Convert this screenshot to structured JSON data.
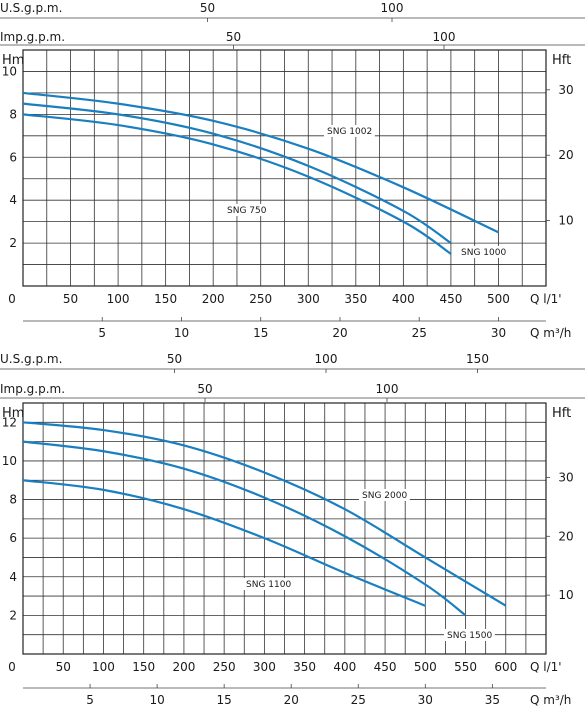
{
  "colors": {
    "curve": "#1a7fc1",
    "grid": "#333333"
  },
  "chart_data": [
    {
      "type": "line",
      "x_unit_label": "Q  l/1'",
      "x2_unit_label": "Q  m³/h",
      "y_left_label": "Hm",
      "y_right_label": "Hft",
      "top_scale1_label": "U.S.g.p.m.",
      "top_scale2_label": "Imp.g.p.m.",
      "xlim": [
        0,
        550
      ],
      "ylim": [
        0,
        11
      ],
      "x_ticks": [
        0,
        50,
        100,
        150,
        200,
        250,
        300,
        350,
        400,
        450,
        500
      ],
      "y_ticks": [
        2,
        4,
        6,
        8,
        10
      ],
      "y_right_ticks": [
        10,
        20,
        30
      ],
      "m3h_ticks": [
        5,
        10,
        15,
        20,
        25,
        30
      ],
      "usgpm_ticks": [
        50,
        100
      ],
      "impgpm_ticks": [
        50,
        100
      ],
      "series": [
        {
          "name": "SNG 1002",
          "x": [
            0,
            100,
            200,
            300,
            400,
            500
          ],
          "y": [
            9.0,
            8.5,
            7.7,
            6.4,
            4.6,
            2.5
          ]
        },
        {
          "name": "SNG 1000",
          "x": [
            0,
            100,
            200,
            300,
            400,
            450
          ],
          "y": [
            8.5,
            8.0,
            7.1,
            5.6,
            3.5,
            2.0
          ]
        },
        {
          "name": "SNG 750",
          "x": [
            0,
            100,
            200,
            300,
            400,
            450
          ],
          "y": [
            8.0,
            7.5,
            6.6,
            5.1,
            3.0,
            1.5
          ]
        }
      ]
    },
    {
      "type": "line",
      "x_unit_label": "Q  l/1'",
      "x2_unit_label": "Q  m³/h",
      "y_left_label": "Hm",
      "y_right_label": "Hft",
      "top_scale1_label": "U.S.g.p.m.",
      "top_scale2_label": "Imp.g.p.m.",
      "xlim": [
        0,
        650
      ],
      "ylim": [
        0,
        13
      ],
      "x_ticks": [
        0,
        50,
        100,
        150,
        200,
        250,
        300,
        350,
        400,
        450,
        500,
        550,
        600
      ],
      "y_ticks": [
        2,
        4,
        6,
        8,
        10,
        12
      ],
      "y_right_ticks": [
        10,
        20,
        30
      ],
      "m3h_ticks": [
        5,
        10,
        15,
        20,
        25,
        30,
        35
      ],
      "usgpm_ticks": [
        50,
        100,
        150
      ],
      "impgpm_ticks": [
        50,
        100
      ],
      "series": [
        {
          "name": "SNG 2000",
          "x": [
            0,
            100,
            200,
            300,
            400,
            500,
            600
          ],
          "y": [
            12.0,
            11.6,
            10.8,
            9.4,
            7.5,
            5.0,
            2.5
          ]
        },
        {
          "name": "SNG 1500",
          "x": [
            0,
            100,
            200,
            300,
            400,
            500,
            550
          ],
          "y": [
            11.0,
            10.5,
            9.6,
            8.1,
            6.1,
            3.6,
            2.0
          ]
        },
        {
          "name": "SNG 1100",
          "x": [
            0,
            100,
            200,
            300,
            400,
            500
          ],
          "y": [
            9.0,
            8.5,
            7.5,
            6.0,
            4.2,
            2.5
          ]
        }
      ]
    }
  ]
}
